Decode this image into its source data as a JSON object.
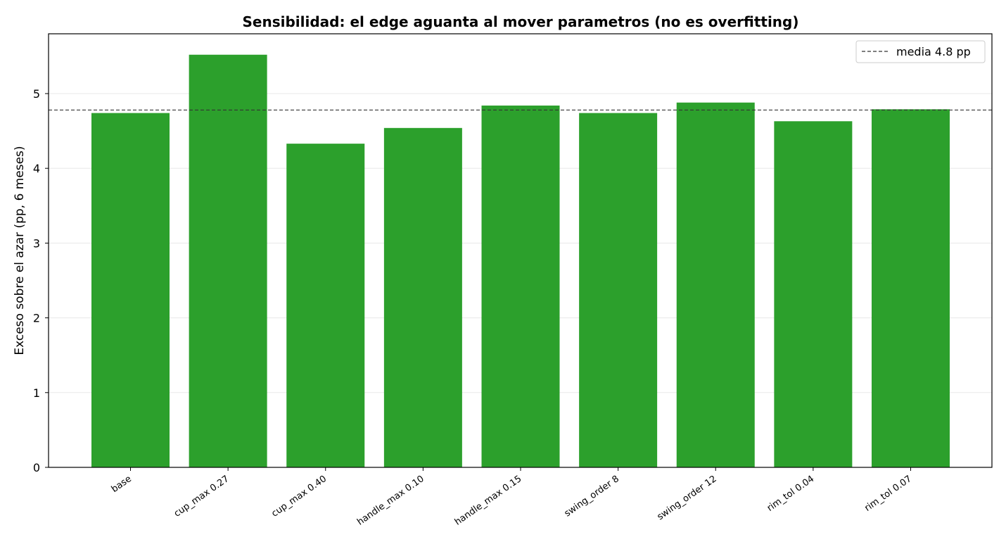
{
  "chart_data": {
    "type": "bar",
    "title": "Sensibilidad: el edge aguanta al mover parametros (no es overfitting)",
    "xlabel": "",
    "ylabel": "Exceso sobre el azar (pp, 6 meses)",
    "categories": [
      "base",
      "cup_max 0.27",
      "cup_max 0.40",
      "handle_max 0.10",
      "handle_max 0.15",
      "swing_order 8",
      "swing_order 12",
      "rim_tol 0.04",
      "rim_tol 0.07"
    ],
    "values": [
      4.74,
      5.52,
      4.33,
      4.54,
      4.84,
      4.74,
      4.88,
      4.63,
      4.79
    ],
    "ylim": [
      0,
      5.8
    ],
    "yticks": [
      "0",
      "1",
      "2",
      "3",
      "4",
      "5"
    ],
    "reference_line": {
      "value": 4.78,
      "style": "dashed",
      "color": "#333333",
      "label": "media 4.8 pp"
    },
    "legend": {
      "placement": "top-right",
      "entries": [
        "media 4.8 pp"
      ]
    },
    "grid": {
      "y": true,
      "x": false
    },
    "colors": {
      "bar": "#2ca02c"
    }
  }
}
